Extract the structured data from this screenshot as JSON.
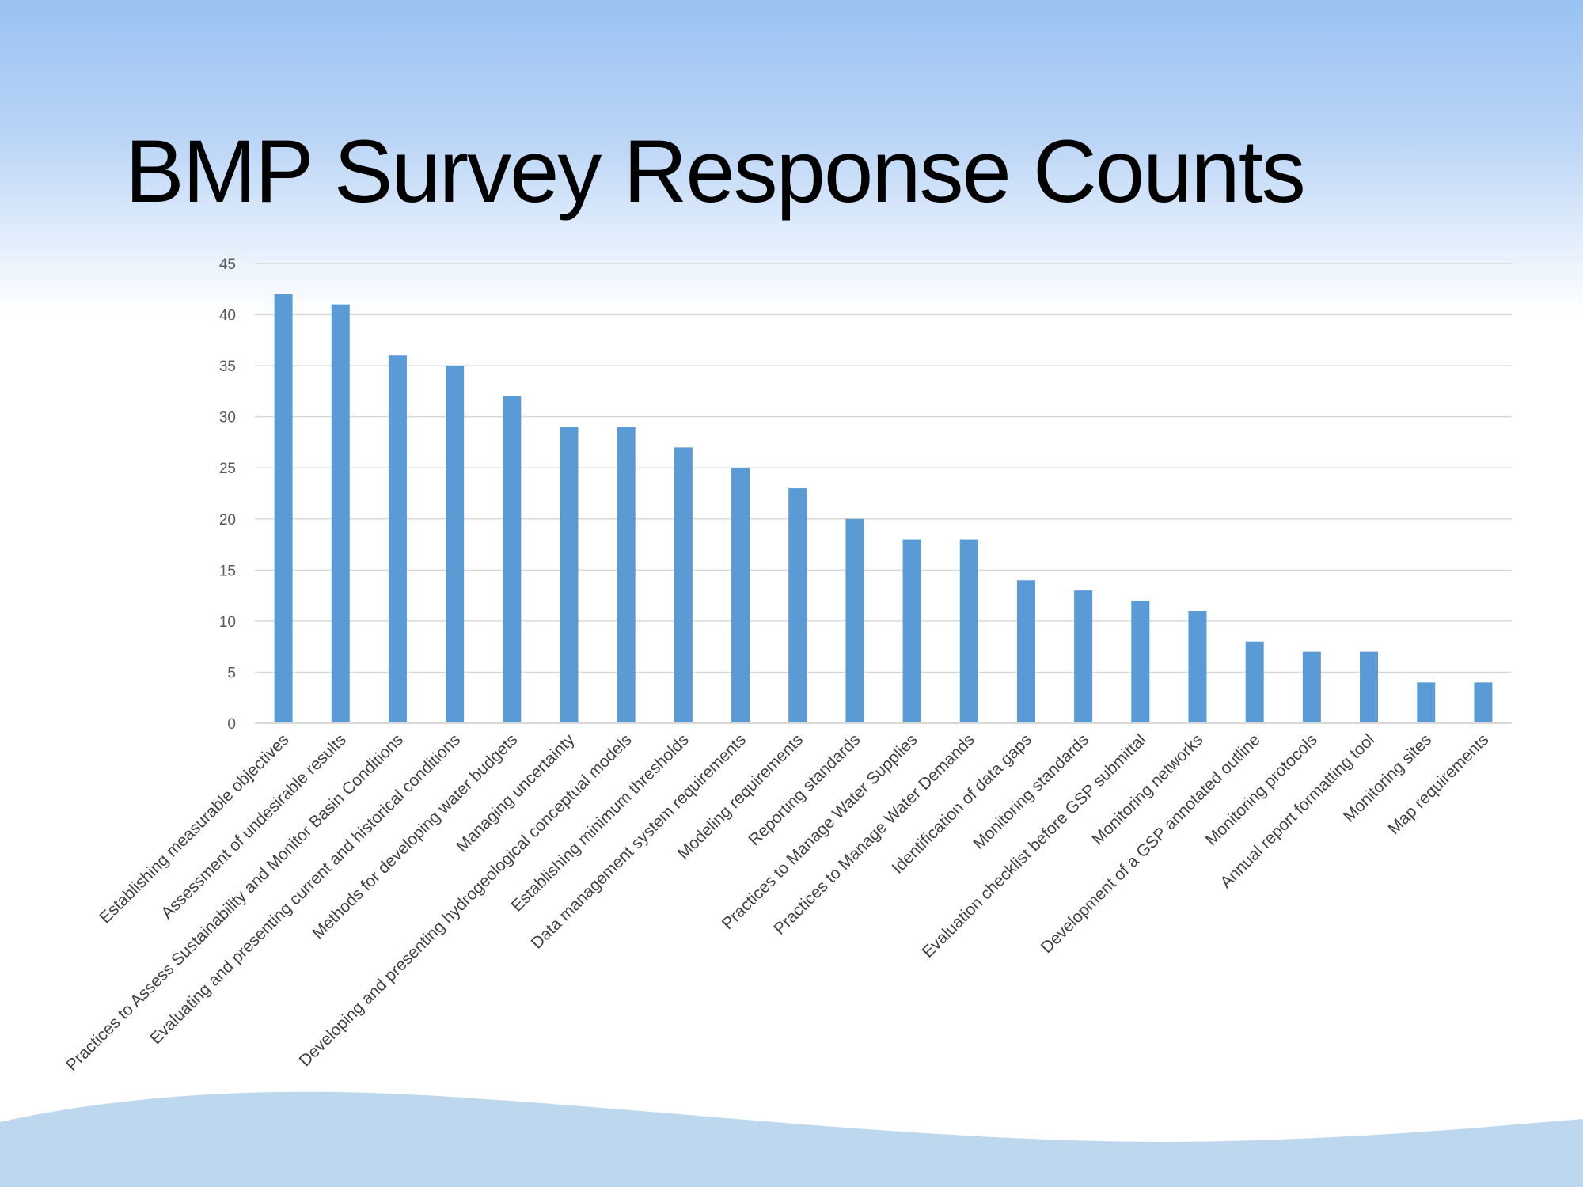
{
  "slide": {
    "title": "BMP Survey Response Counts",
    "colors": {
      "bar": "#5b9bd5",
      "grid": "#d9d9d9",
      "wave": "#bdd7ee",
      "title": "#000000"
    }
  },
  "chart_data": {
    "type": "bar",
    "title": "",
    "xlabel": "",
    "ylabel": "",
    "ylim": [
      0,
      45
    ],
    "yticks": [
      0,
      5,
      10,
      15,
      20,
      25,
      30,
      35,
      40,
      45
    ],
    "grid": true,
    "legend": "none",
    "categories": [
      "Establishing measurable objectives",
      "Assessment of undesirable results",
      "Practices to Assess Sustainability and Monitor Basin Conditions",
      "Evaluating and presenting current and historical conditions",
      "Methods for developing water budgets",
      "Managing uncertainty",
      "Developing and presenting hydrogeological conceptual models",
      "Establishing minimum thresholds",
      "Data management system requirements",
      "Modeling requirements",
      "Reporting standards",
      "Practices to Manage Water Supplies",
      "Practices to Manage Water Demands",
      "Identification of data gaps",
      "Monitoring standards",
      "Evaluation checklist before GSP submittal",
      "Monitoring networks",
      "Development of a GSP annotated outline",
      "Monitoring protocols",
      "Annual report formatting tool",
      "Monitoring sites",
      "Map requirements"
    ],
    "values": [
      42,
      41,
      36,
      35,
      32,
      29,
      29,
      27,
      25,
      23,
      20,
      18,
      18,
      14,
      13,
      12,
      11,
      8,
      7,
      7,
      4,
      4
    ]
  }
}
